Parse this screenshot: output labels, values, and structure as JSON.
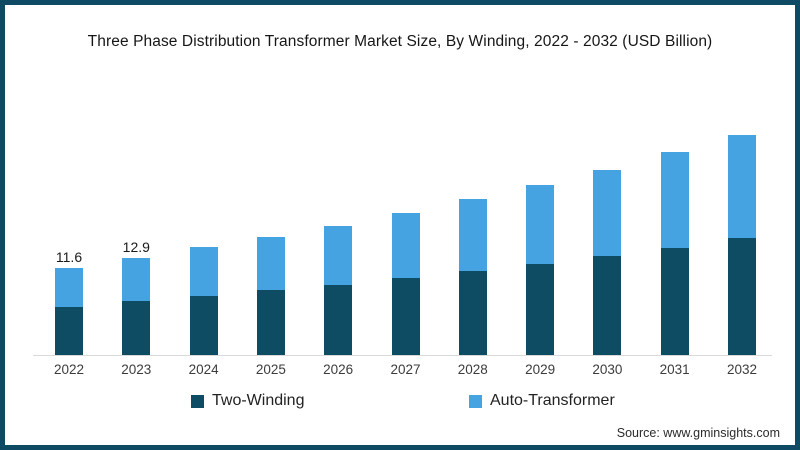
{
  "frame": {
    "border_color": "#0E4A63",
    "background_color": "#FFFFFF"
  },
  "header": {
    "title": "Three Phase Distribution Transformer Market Size, By Winding, 2022 - 2032 (USD Billion)"
  },
  "legend": {
    "items": [
      {
        "label": "Two-Winding",
        "color": "#0E4C63"
      },
      {
        "label": "Auto-Transformer",
        "color": "#44A3E0"
      }
    ]
  },
  "footer": {
    "source_text": "Source: www.gminsights.com"
  },
  "chart_data": {
    "type": "bar",
    "stacked": true,
    "title": "Three Phase Distribution Transformer Market Size, By Winding, 2022 - 2032 (USD Billion)",
    "categories": [
      "2022",
      "2023",
      "2024",
      "2025",
      "2026",
      "2027",
      "2028",
      "2029",
      "2030",
      "2031",
      "2032"
    ],
    "series": [
      {
        "name": "Two-Winding",
        "color": "#0E4C63",
        "values": [
          6.4,
          7.2,
          7.9,
          8.7,
          9.4,
          10.3,
          11.2,
          12.2,
          13.2,
          14.3,
          15.6
        ]
      },
      {
        "name": "Auto-Transformer",
        "color": "#44A3E0",
        "values": [
          5.2,
          5.7,
          6.5,
          7.1,
          7.8,
          8.6,
          9.6,
          10.5,
          11.5,
          12.8,
          13.8
        ]
      }
    ],
    "totals": [
      11.6,
      12.9,
      14.4,
      15.8,
      17.2,
      18.9,
      20.8,
      22.7,
      24.7,
      27.1,
      29.4
    ],
    "data_labels": {
      "2022": "11.6",
      "2023": "12.9"
    },
    "xlabel": "",
    "ylabel": "",
    "ylim": [
      0,
      30
    ],
    "grid": false,
    "y_axis_visible": false,
    "legend_position": "bottom",
    "axis_line_color": "#D9D9D9"
  }
}
